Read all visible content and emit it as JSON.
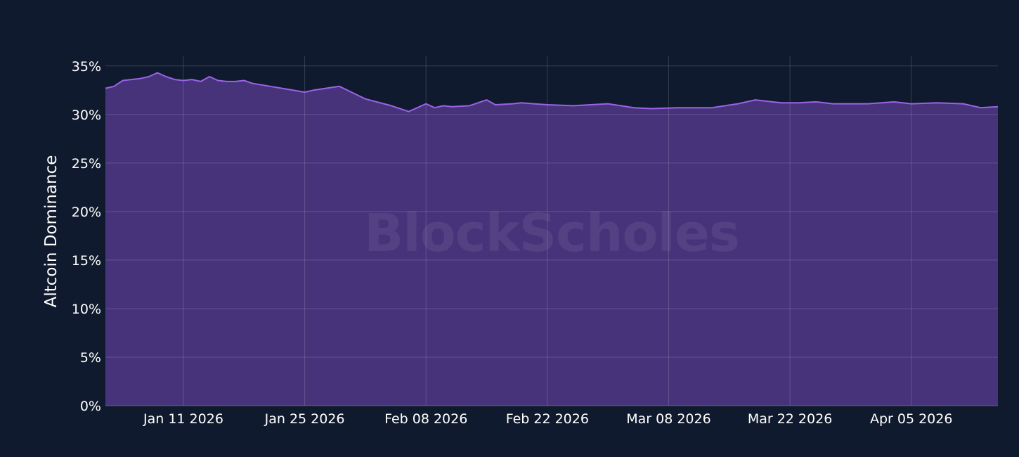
{
  "colors": {
    "background": "#101a2e",
    "area_fill": "#46337a",
    "line": "#9a63e6",
    "grid": "#ffffff"
  },
  "watermark": "BlockScholes",
  "chart_data": {
    "type": "area",
    "ylabel": "Altcoin Dominance",
    "xlabel": "",
    "title": "",
    "ylim": [
      0,
      36
    ],
    "xlim": [
      "2026-01-02",
      "2026-04-15"
    ],
    "yticks": [
      0,
      5,
      10,
      15,
      20,
      25,
      30,
      35
    ],
    "ytick_labels": [
      "0%",
      "5%",
      "10%",
      "15%",
      "20%",
      "25%",
      "30%",
      "35%"
    ],
    "xticks": [
      "2026-01-11",
      "2026-01-25",
      "2026-02-08",
      "2026-02-22",
      "2026-03-08",
      "2026-03-22",
      "2026-04-05"
    ],
    "xtick_labels": [
      "Jan 11 2026",
      "Jan 25 2026",
      "Feb 08 2026",
      "Feb 22 2026",
      "Mar 08 2026",
      "Mar 22 2026",
      "Apr 05 2026"
    ],
    "grid": true,
    "series": [
      {
        "x": [
          "2026-01-02",
          "2026-01-03",
          "2026-01-04",
          "2026-01-05",
          "2026-01-06",
          "2026-01-07",
          "2026-01-08",
          "2026-01-09",
          "2026-01-10",
          "2026-01-11",
          "2026-01-12",
          "2026-01-13",
          "2026-01-14",
          "2026-01-15",
          "2026-01-16",
          "2026-01-17",
          "2026-01-18",
          "2026-01-19",
          "2026-01-21",
          "2026-01-23",
          "2026-01-25",
          "2026-01-26",
          "2026-01-29",
          "2026-02-01",
          "2026-02-04",
          "2026-02-06",
          "2026-02-08",
          "2026-02-09",
          "2026-02-10",
          "2026-02-11",
          "2026-02-13",
          "2026-02-15",
          "2026-02-16",
          "2026-02-18",
          "2026-02-19",
          "2026-02-22",
          "2026-02-25",
          "2026-03-01",
          "2026-03-04",
          "2026-03-06",
          "2026-03-09",
          "2026-03-13",
          "2026-03-16",
          "2026-03-18",
          "2026-03-21",
          "2026-03-23",
          "2026-03-25",
          "2026-03-27",
          "2026-03-31",
          "2026-04-03",
          "2026-04-05",
          "2026-04-08",
          "2026-04-11",
          "2026-04-13",
          "2026-04-15"
        ],
        "values": [
          32.7,
          32.9,
          33.5,
          33.6,
          33.7,
          33.9,
          34.3,
          33.9,
          33.6,
          33.5,
          33.6,
          33.4,
          33.9,
          33.5,
          33.4,
          33.4,
          33.5,
          33.2,
          32.9,
          32.6,
          32.3,
          32.5,
          32.9,
          31.6,
          30.9,
          30.3,
          31.1,
          30.7,
          30.9,
          30.8,
          30.9,
          31.5,
          31.0,
          31.1,
          31.2,
          31.0,
          30.9,
          31.1,
          30.7,
          30.6,
          30.7,
          30.7,
          31.1,
          31.5,
          31.2,
          31.2,
          31.3,
          31.1,
          31.1,
          31.3,
          31.1,
          31.2,
          31.1,
          30.7,
          30.8
        ]
      }
    ]
  }
}
